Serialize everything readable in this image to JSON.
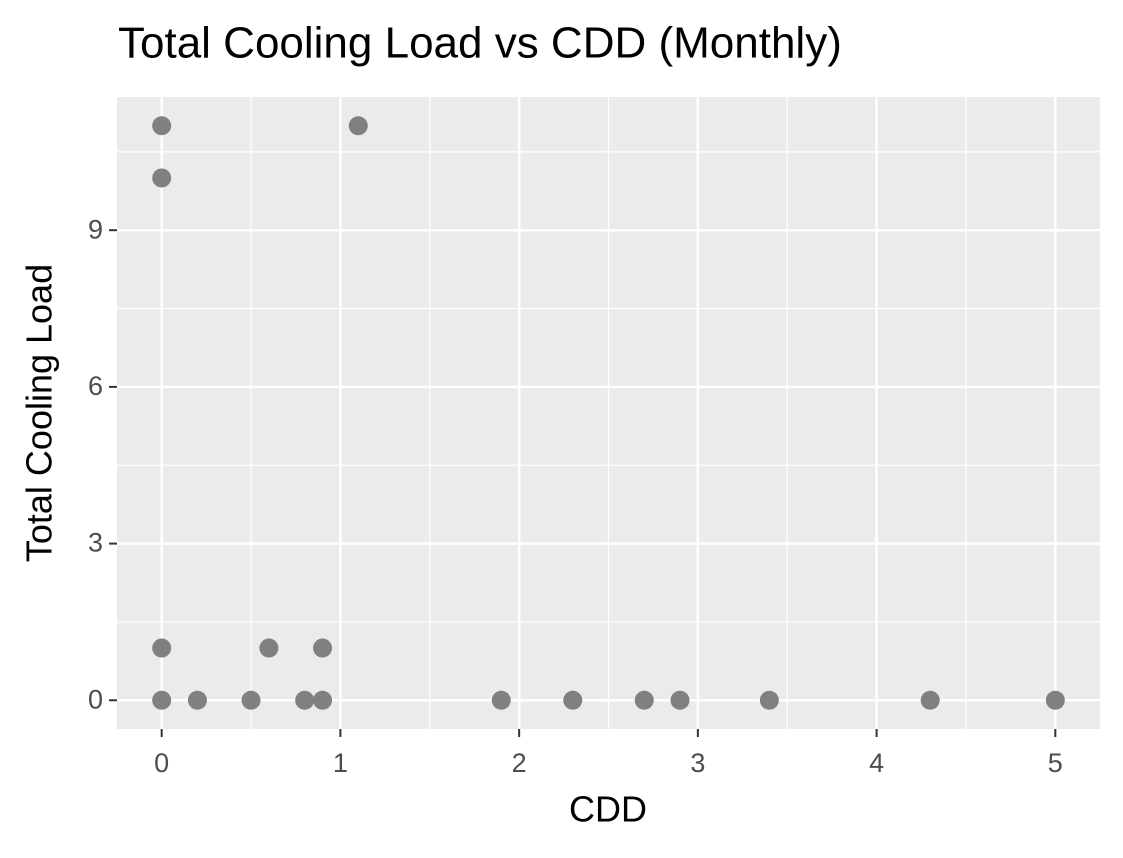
{
  "chart_data": {
    "type": "scatter",
    "title": "Total Cooling Load vs CDD (Monthly)",
    "x_label": "CDD",
    "y_label": "Total Cooling Load",
    "series": [
      {
        "name": "Monthly",
        "color": "#808080",
        "x": [
          0,
          0,
          1.1,
          0,
          0.6,
          0.9,
          0,
          0.2,
          0.5,
          0.8,
          0.9,
          1.9,
          2.3,
          2.7,
          2.9,
          3.4,
          4.3,
          5
        ],
        "values": [
          11,
          10,
          11,
          1,
          1,
          1,
          0,
          0,
          0,
          0,
          0,
          0,
          0,
          0,
          0,
          0,
          0,
          0
        ]
      }
    ],
    "xlim": [
      -0.25,
      5.25
    ],
    "ylim": [
      -0.55,
      11.55
    ],
    "xticks": [
      0,
      1,
      2,
      3,
      4,
      5
    ],
    "yticks": [
      0,
      3,
      6,
      9
    ],
    "x_minor_ticks": [
      0.5,
      1.5,
      2.5,
      3.5,
      4.5
    ],
    "y_minor_ticks": [
      1.5,
      4.5,
      7.5,
      10.5
    ],
    "grid": true,
    "panel_color": "#ebebeb"
  }
}
